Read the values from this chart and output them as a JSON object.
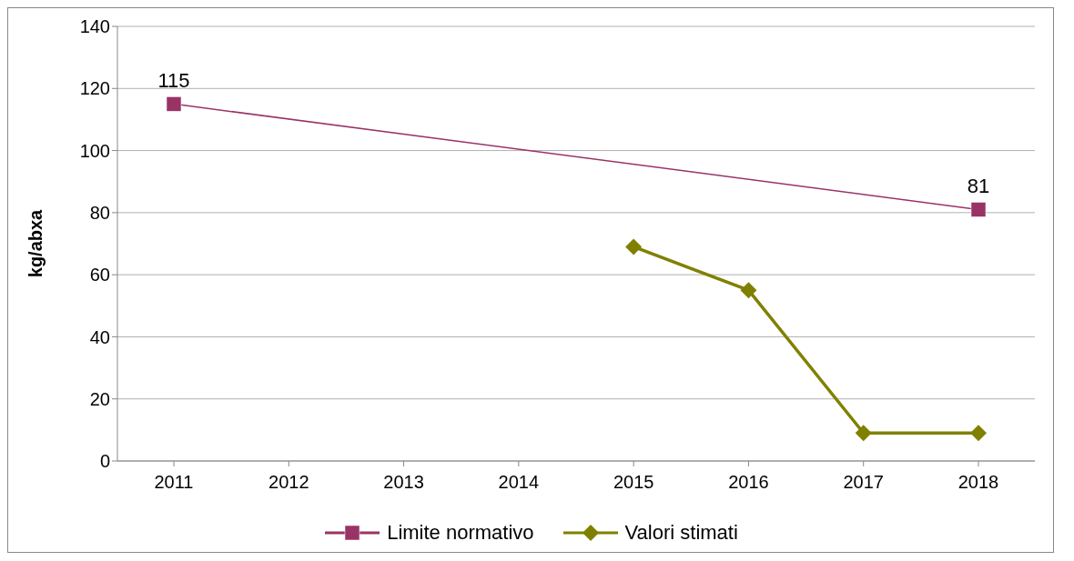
{
  "chart_data": {
    "type": "line",
    "ylabel": "kg/abxa",
    "categories": [
      "2011",
      "2012",
      "2013",
      "2014",
      "2015",
      "2016",
      "2017",
      "2018"
    ],
    "series": [
      {
        "name": "Limite normativo",
        "color": "#993366",
        "marker": "square",
        "values": [
          115,
          null,
          null,
          null,
          null,
          null,
          null,
          81
        ],
        "value_labels": [
          "115",
          null,
          null,
          null,
          null,
          null,
          null,
          "81"
        ]
      },
      {
        "name": "Valori stimati",
        "color": "#808000",
        "marker": "diamond",
        "values": [
          null,
          null,
          null,
          null,
          69,
          55,
          9,
          9
        ]
      }
    ],
    "ylim": [
      0,
      140
    ],
    "yticks": [
      0,
      20,
      40,
      60,
      80,
      100,
      120,
      140
    ],
    "grid": "y",
    "legend": "bottom",
    "line_style": "solid"
  }
}
